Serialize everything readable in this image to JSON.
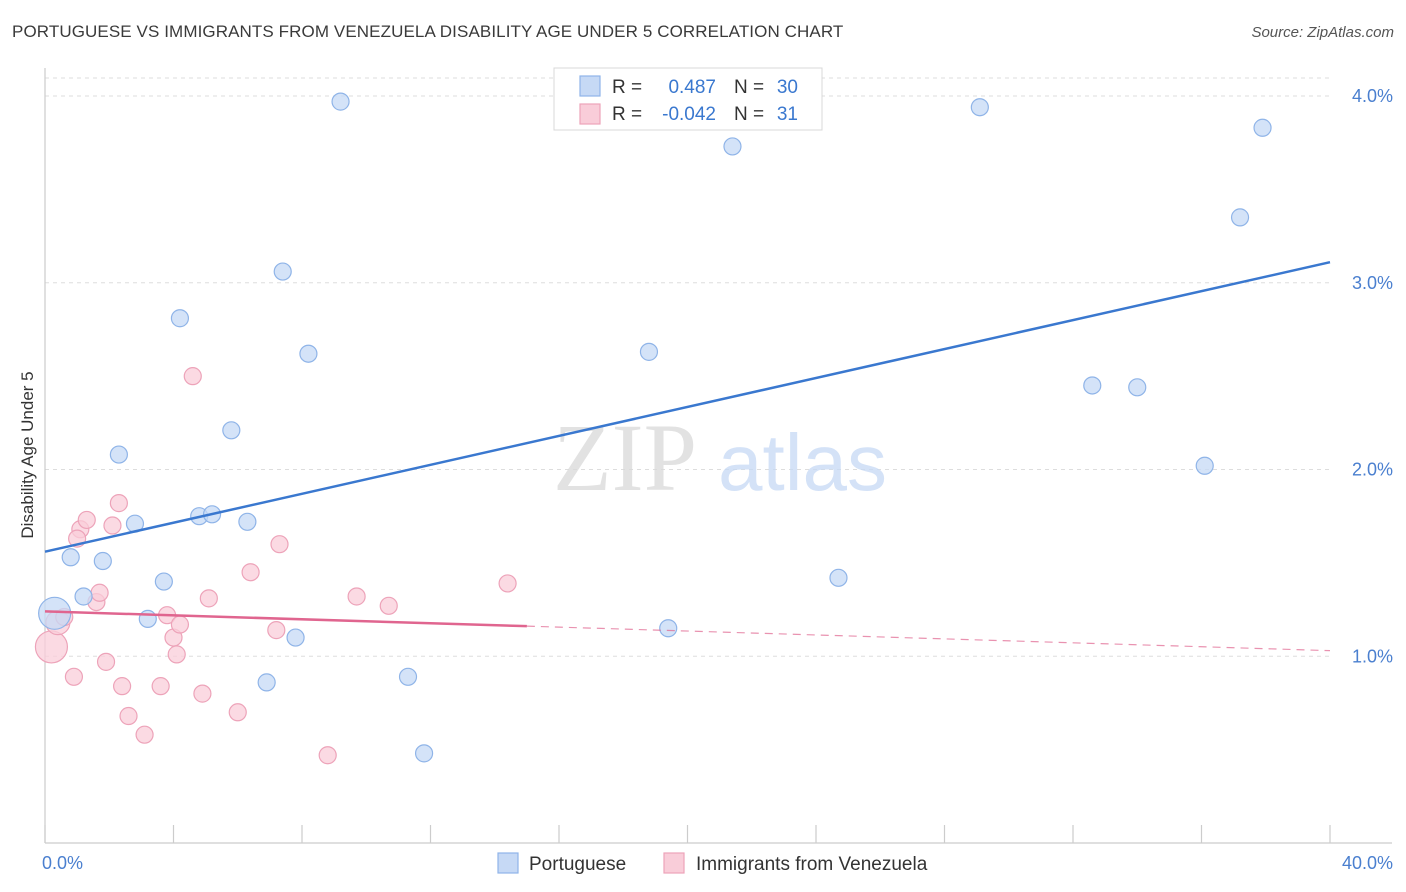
{
  "title": "PORTUGUESE VS IMMIGRANTS FROM VENEZUELA DISABILITY AGE UNDER 5 CORRELATION CHART",
  "source": "Source: ZipAtlas.com",
  "watermark": {
    "zip": "ZIP",
    "atlas": "atlas"
  },
  "colors": {
    "blue_fill": "#c6d9f5",
    "blue_stroke": "#8fb4e8",
    "blue_line": "#3a78cf",
    "pink_fill": "#f9cdd9",
    "pink_stroke": "#eda3b9",
    "pink_line": "#e0658f",
    "grid": "#dddddd",
    "tick_label": "#4a7fcf"
  },
  "legend": {
    "rows": [
      {
        "r_label": "R =",
        "r_value": "0.487",
        "n_label": "N =",
        "n_value": "30",
        "series": "portuguese"
      },
      {
        "r_label": "R =",
        "r_value": "-0.042",
        "n_label": "N =",
        "n_value": "31",
        "series": "venezuela"
      }
    ]
  },
  "chart_data": {
    "type": "scatter",
    "xlabel": "",
    "ylabel": "Disability Age Under 5",
    "xlim": [
      0,
      40
    ],
    "ylim": [
      0,
      4.15
    ],
    "x_tick_labels": [
      "0.0%",
      "40.0%"
    ],
    "y_ticks": [
      {
        "value": 1.0,
        "label": "1.0%"
      },
      {
        "value": 2.0,
        "label": "2.0%"
      },
      {
        "value": 3.0,
        "label": "3.0%"
      },
      {
        "value": 4.0,
        "label": "4.0%"
      }
    ],
    "series": [
      {
        "name": "Portuguese",
        "points": [
          {
            "x": 0.3,
            "y": 1.23,
            "size": 3
          },
          {
            "x": 0.8,
            "y": 1.53,
            "size": 1
          },
          {
            "x": 1.2,
            "y": 1.32,
            "size": 1
          },
          {
            "x": 1.8,
            "y": 1.51,
            "size": 1
          },
          {
            "x": 2.3,
            "y": 2.08,
            "size": 1
          },
          {
            "x": 2.8,
            "y": 1.71,
            "size": 1
          },
          {
            "x": 3.2,
            "y": 1.2,
            "size": 1
          },
          {
            "x": 3.7,
            "y": 1.4,
            "size": 1
          },
          {
            "x": 4.2,
            "y": 2.81,
            "size": 1
          },
          {
            "x": 4.8,
            "y": 1.75,
            "size": 1
          },
          {
            "x": 5.2,
            "y": 1.76,
            "size": 1
          },
          {
            "x": 5.8,
            "y": 2.21,
            "size": 1
          },
          {
            "x": 6.3,
            "y": 1.72,
            "size": 1
          },
          {
            "x": 6.9,
            "y": 0.86,
            "size": 1
          },
          {
            "x": 7.4,
            "y": 3.06,
            "size": 1
          },
          {
            "x": 7.8,
            "y": 1.1,
            "size": 1
          },
          {
            "x": 8.2,
            "y": 2.62,
            "size": 1
          },
          {
            "x": 9.2,
            "y": 3.97,
            "size": 1
          },
          {
            "x": 11.3,
            "y": 0.89,
            "size": 1
          },
          {
            "x": 11.8,
            "y": 0.48,
            "size": 1
          },
          {
            "x": 18.8,
            "y": 2.63,
            "size": 1
          },
          {
            "x": 19.4,
            "y": 1.15,
            "size": 1
          },
          {
            "x": 21.4,
            "y": 3.73,
            "size": 1
          },
          {
            "x": 24.7,
            "y": 1.42,
            "size": 1
          },
          {
            "x": 29.1,
            "y": 3.94,
            "size": 1
          },
          {
            "x": 32.6,
            "y": 2.45,
            "size": 1
          },
          {
            "x": 34.0,
            "y": 2.44,
            "size": 1
          },
          {
            "x": 36.1,
            "y": 2.02,
            "size": 1
          },
          {
            "x": 37.2,
            "y": 3.35,
            "size": 1
          },
          {
            "x": 37.9,
            "y": 3.83,
            "size": 1
          }
        ],
        "trend": {
          "x0": 0,
          "y0": 1.56,
          "x1": 40,
          "y1": 3.11,
          "solid_until": 40
        }
      },
      {
        "name": "Immigrants from Venezuela",
        "points": [
          {
            "x": 0.2,
            "y": 1.05,
            "size": 3
          },
          {
            "x": 0.4,
            "y": 1.18,
            "size": 2
          },
          {
            "x": 0.6,
            "y": 1.21,
            "size": 1
          },
          {
            "x": 0.9,
            "y": 0.89,
            "size": 1
          },
          {
            "x": 1.1,
            "y": 1.68,
            "size": 1
          },
          {
            "x": 1.0,
            "y": 1.63,
            "size": 1
          },
          {
            "x": 1.3,
            "y": 1.73,
            "size": 1
          },
          {
            "x": 1.6,
            "y": 1.29,
            "size": 1
          },
          {
            "x": 1.7,
            "y": 1.34,
            "size": 1
          },
          {
            "x": 1.9,
            "y": 0.97,
            "size": 1
          },
          {
            "x": 2.1,
            "y": 1.7,
            "size": 1
          },
          {
            "x": 2.3,
            "y": 1.82,
            "size": 1
          },
          {
            "x": 2.4,
            "y": 0.84,
            "size": 1
          },
          {
            "x": 2.6,
            "y": 0.68,
            "size": 1
          },
          {
            "x": 3.1,
            "y": 0.58,
            "size": 1
          },
          {
            "x": 3.6,
            "y": 0.84,
            "size": 1
          },
          {
            "x": 3.8,
            "y": 1.22,
            "size": 1
          },
          {
            "x": 4.0,
            "y": 1.1,
            "size": 1
          },
          {
            "x": 4.1,
            "y": 1.01,
            "size": 1
          },
          {
            "x": 4.2,
            "y": 1.17,
            "size": 1
          },
          {
            "x": 4.6,
            "y": 2.5,
            "size": 1
          },
          {
            "x": 4.9,
            "y": 0.8,
            "size": 1
          },
          {
            "x": 5.1,
            "y": 1.31,
            "size": 1
          },
          {
            "x": 6.0,
            "y": 0.7,
            "size": 1
          },
          {
            "x": 6.4,
            "y": 1.45,
            "size": 1
          },
          {
            "x": 7.2,
            "y": 1.14,
            "size": 1
          },
          {
            "x": 7.3,
            "y": 1.6,
            "size": 1
          },
          {
            "x": 8.8,
            "y": 0.47,
            "size": 1
          },
          {
            "x": 9.7,
            "y": 1.32,
            "size": 1
          },
          {
            "x": 10.7,
            "y": 1.27,
            "size": 1
          },
          {
            "x": 14.4,
            "y": 1.39,
            "size": 1
          }
        ],
        "trend": {
          "x0": 0,
          "y0": 1.24,
          "x1": 40,
          "y1": 1.03,
          "solid_until": 15
        }
      }
    ]
  },
  "bottom_legend": [
    {
      "label": "Portuguese",
      "series": "portuguese"
    },
    {
      "label": "Immigrants from Venezuela",
      "series": "venezuela"
    }
  ]
}
